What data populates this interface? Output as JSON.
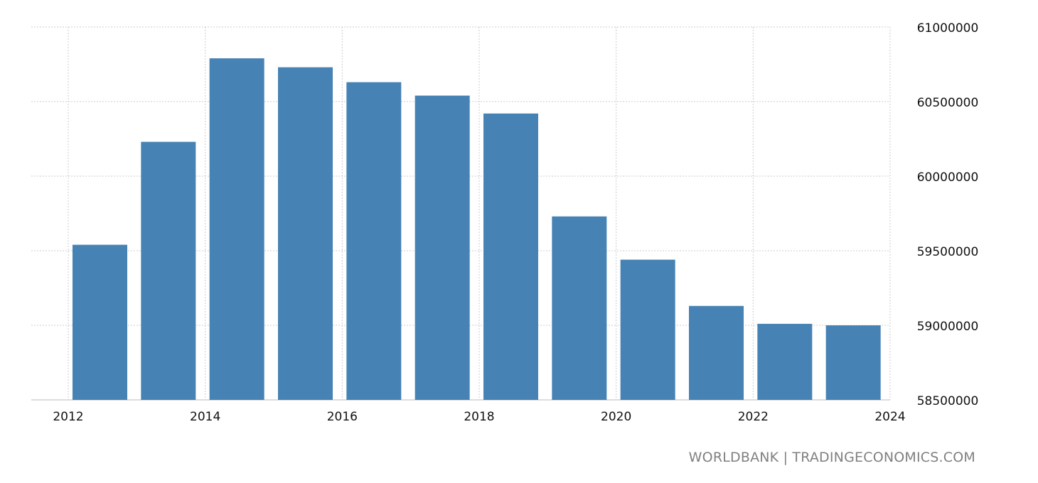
{
  "chart_data": {
    "type": "bar",
    "categories": [
      "2012",
      "2013",
      "2014",
      "2015",
      "2016",
      "2017",
      "2018",
      "2019",
      "2020",
      "2021",
      "2022",
      "2023"
    ],
    "values": [
      59540000,
      60230000,
      60790000,
      60730000,
      60630000,
      60540000,
      60420000,
      59730000,
      59440000,
      59130000,
      59010000,
      59000000
    ],
    "title": "",
    "xlabel": "",
    "ylabel": "",
    "ylim": [
      58500000,
      61000000
    ],
    "yticks": [
      58500000,
      59000000,
      59500000,
      60000000,
      60500000,
      61000000
    ],
    "ytick_labels": [
      "58500000",
      "59000000",
      "59500000",
      "60000000",
      "60500000",
      "61000000"
    ],
    "xticks": [
      2012,
      2014,
      2016,
      2018,
      2020,
      2022,
      2024
    ],
    "xtick_labels": [
      "2012",
      "2014",
      "2016",
      "2018",
      "2020",
      "2022",
      "2024"
    ],
    "bar_color": "#4682b4",
    "grid": true,
    "y_axis_side": "right"
  },
  "source_text": "WORLDBANK | TRADINGECONOMICS.COM"
}
